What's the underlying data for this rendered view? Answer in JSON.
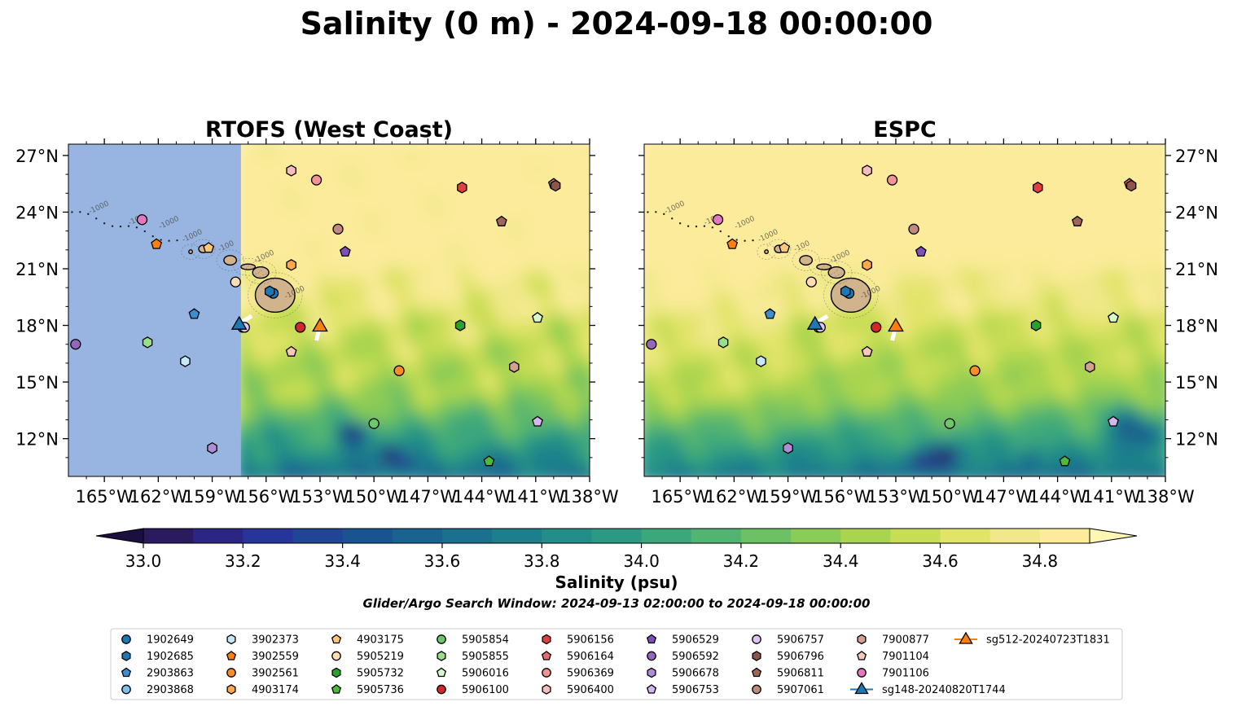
{
  "chart_data": {
    "type": "map",
    "title": "Salinity (0 m) - 2024-09-18 00:00:00",
    "panels": [
      {
        "title": "RTOFS (West Coast)",
        "coverage_lon_min": -157.4,
        "land_color": "#97b5e0"
      },
      {
        "title": "ESPC",
        "coverage_lon_min": -167.0,
        "land_color": "#97b5e0"
      }
    ],
    "lon_range": [
      -167.0,
      -138.0
    ],
    "lat_range": [
      10.0,
      27.6
    ],
    "x_ticks": [
      -165,
      -162,
      -159,
      -156,
      -153,
      -150,
      -147,
      -144,
      -141,
      -138
    ],
    "x_tick_labels": [
      "165°W",
      "162°W",
      "159°W",
      "156°W",
      "153°W",
      "150°W",
      "147°W",
      "144°W",
      "141°W",
      "138°W"
    ],
    "y_ticks": [
      12,
      15,
      18,
      21,
      24,
      27
    ],
    "y_tick_labels": [
      "12°N",
      "15°N",
      "18°N",
      "21°N",
      "24°N",
      "27°N"
    ],
    "colorbar": {
      "label": "Salinity (psu)",
      "min": 33.0,
      "max": 34.9,
      "step": 0.1,
      "extend": "both",
      "tick_values": [
        33.0,
        33.2,
        33.4,
        33.6,
        33.8,
        34.0,
        34.2,
        34.4,
        34.6,
        34.8
      ],
      "tick_labels": [
        "33.0",
        "33.2",
        "33.4",
        "33.6",
        "33.8",
        "34.0",
        "34.2",
        "34.4",
        "34.6",
        "34.8"
      ],
      "colors": [
        "#2a1a5e",
        "#2b2683",
        "#27359a",
        "#1f4594",
        "#1a5490",
        "#1a628f",
        "#1a708e",
        "#1d7f8c",
        "#238d88",
        "#2c9a83",
        "#3ca77b",
        "#52b471",
        "#6ec064",
        "#8bcb57",
        "#a9d450",
        "#c7dd55",
        "#e2e46a",
        "#f0e88a",
        "#fbeb9a"
      ]
    },
    "subtitle": "Glider/Argo Search Window: 2024-09-13 02:00:00 to 2024-09-18 00:00:00",
    "contour_labels": [
      "-1000",
      "-100",
      "-1000",
      "-1000",
      "-100",
      "-1000",
      "-1000"
    ],
    "floats": [
      {
        "id": "1902649",
        "marker": "circle",
        "color": "#1f77b4",
        "lon": -155.6,
        "lat": 19.7
      },
      {
        "id": "1902685",
        "marker": "hexagon",
        "color": "#1f77b4",
        "lon": -155.8,
        "lat": 19.8
      },
      {
        "id": "2903863",
        "marker": "pentagon",
        "color": "#3a8fd0",
        "lon": -160.0,
        "lat": 18.6
      },
      {
        "id": "2903868",
        "marker": "circle",
        "color": "#7fc1ea",
        "lon": -157.3,
        "lat": 17.9
      },
      {
        "id": "3902373",
        "marker": "hexagon",
        "color": "#c8e8f8",
        "lon": -160.5,
        "lat": 16.1
      },
      {
        "id": "3902559",
        "marker": "pentagon",
        "color": "#ff7f0e",
        "lon": -162.1,
        "lat": 22.3
      },
      {
        "id": "3902561",
        "marker": "circle",
        "color": "#ff8c2a",
        "lon": -148.6,
        "lat": 15.6
      },
      {
        "id": "4903174",
        "marker": "hexagon",
        "color": "#ffa84d",
        "lon": -154.6,
        "lat": 21.2
      },
      {
        "id": "4903175",
        "marker": "pentagon",
        "color": "#ffc878",
        "lon": -159.2,
        "lat": 22.1
      },
      {
        "id": "5905219",
        "marker": "circle",
        "color": "#ffdcb4",
        "lon": -157.7,
        "lat": 20.3
      },
      {
        "id": "5905732",
        "marker": "hexagon",
        "color": "#2ca02c",
        "lon": -145.2,
        "lat": 18.0
      },
      {
        "id": "5905736",
        "marker": "pentagon",
        "color": "#4cbb3a",
        "lon": -143.6,
        "lat": 10.8
      },
      {
        "id": "5905854",
        "marker": "circle",
        "color": "#6cc86a",
        "lon": -150.0,
        "lat": 12.8
      },
      {
        "id": "5905855",
        "marker": "hexagon",
        "color": "#98df8a",
        "lon": -162.6,
        "lat": 17.1
      },
      {
        "id": "5906016",
        "marker": "pentagon",
        "color": "#d7f8c8",
        "lon": -140.9,
        "lat": 18.4
      },
      {
        "id": "5906100",
        "marker": "circle",
        "color": "#d62728",
        "lon": -154.1,
        "lat": 17.9
      },
      {
        "id": "5906156",
        "marker": "hexagon",
        "color": "#e04040",
        "lon": -145.1,
        "lat": 25.3
      },
      {
        "id": "5906164",
        "marker": "pentagon",
        "color": "#e46c6c",
        "lon": -140.0,
        "lat": 25.5
      },
      {
        "id": "5906369",
        "marker": "circle",
        "color": "#f29494",
        "lon": -153.2,
        "lat": 25.7
      },
      {
        "id": "5906400",
        "marker": "hexagon",
        "color": "#f8bcbc",
        "lon": -154.6,
        "lat": 26.2
      },
      {
        "id": "5906529",
        "marker": "pentagon",
        "color": "#7f4fb8",
        "lon": -151.6,
        "lat": 21.9
      },
      {
        "id": "5906592",
        "marker": "circle",
        "color": "#9467bd",
        "lon": -166.6,
        "lat": 17.0
      },
      {
        "id": "5906678",
        "marker": "hexagon",
        "color": "#b08ed6",
        "lon": -159.0,
        "lat": 11.5
      },
      {
        "id": "5906753",
        "marker": "pentagon",
        "color": "#d2b8ee",
        "lon": -140.9,
        "lat": 12.9
      },
      {
        "id": "5906757",
        "marker": "circle",
        "color": "#e2c4f4",
        "lon": -157.2,
        "lat": 17.9
      },
      {
        "id": "5906796",
        "marker": "hexagon",
        "color": "#8c564b",
        "lon": -139.9,
        "lat": 25.4
      },
      {
        "id": "5906811",
        "marker": "pentagon",
        "color": "#a0665a",
        "lon": -142.9,
        "lat": 23.5
      },
      {
        "id": "5907061",
        "marker": "circle",
        "color": "#c08a7e",
        "lon": -152.0,
        "lat": 23.1
      },
      {
        "id": "7900877",
        "marker": "hexagon",
        "color": "#d4a090",
        "lon": -142.2,
        "lat": 15.8
      },
      {
        "id": "7901104",
        "marker": "pentagon",
        "color": "#f6c8b8",
        "lon": -154.6,
        "lat": 16.6
      },
      {
        "id": "7901106",
        "marker": "circle",
        "color": "#e377c2",
        "lon": -162.9,
        "lat": 23.6
      }
    ],
    "gliders": [
      {
        "id": "sg148-20240820T1744",
        "marker": "triangle",
        "color": "#1f77b4",
        "lon": -157.5,
        "lat": 18.1,
        "track": [
          [
            -157.5,
            18.1
          ],
          [
            -156.8,
            18.5
          ]
        ]
      },
      {
        "id": "sg512-20240723T1831",
        "marker": "triangle",
        "color": "#ff7f0e",
        "lon": -153.0,
        "lat": 18.0,
        "track": [
          [
            -153.0,
            18.0
          ],
          [
            -153.2,
            17.2
          ]
        ]
      }
    ]
  }
}
